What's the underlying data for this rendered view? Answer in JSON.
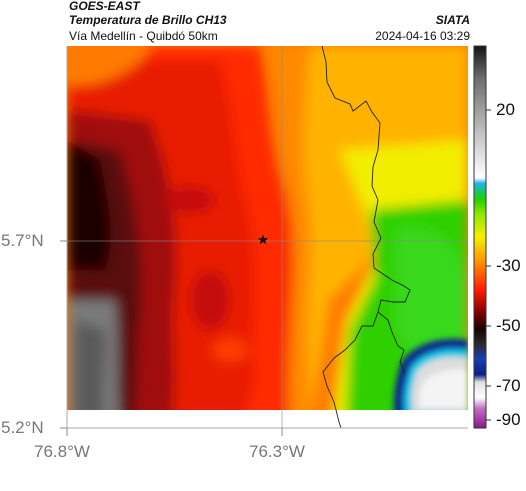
{
  "header": {
    "satellite": "GOES-EAST",
    "product": "Temperatura de Brillo CH13",
    "route": "Vía Medellín - Quibdó 50km",
    "organization": "SIATA",
    "datetime": "2024-04-16 03:29"
  },
  "map": {
    "lat_labels": [
      "5.7°N",
      "5.2°N"
    ],
    "lon_labels": [
      "76.8°W",
      "76.3°W"
    ],
    "marker": "star-marker"
  },
  "colorbar": {
    "tick_labels": [
      "20",
      "-30",
      "-50",
      "-70",
      "-90"
    ],
    "colors": {
      "warm_gray": "#6f6f6f",
      "black": "#1a0a0a",
      "dark_red": "#6a0c0c",
      "red": "#e81b05",
      "orange": "#ff8a00",
      "yellow": "#e8f200",
      "green": "#2ed000",
      "blue": "#0b2a90",
      "cyan": "#11c4e6",
      "white": "#f2f2f2",
      "magenta": "#b02a9a"
    }
  }
}
